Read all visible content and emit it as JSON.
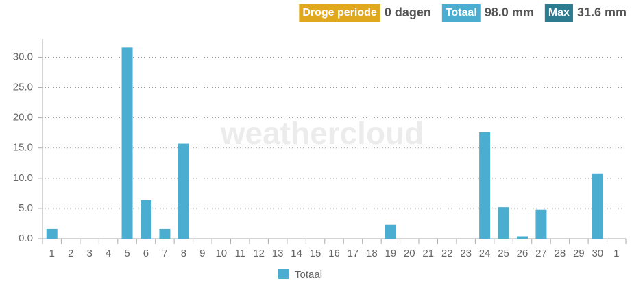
{
  "badges": [
    {
      "label": "Droge periode",
      "value": "0 dagen",
      "color": "#e0a81c"
    },
    {
      "label": "Totaal",
      "value": "98.0 mm",
      "color": "#4baed0"
    },
    {
      "label": "Max",
      "value": "31.6 mm",
      "color": "#2d7b8f"
    }
  ],
  "chart_data": {
    "type": "bar",
    "watermark": "weathercloud",
    "categories": [
      "1",
      "2",
      "3",
      "4",
      "5",
      "6",
      "7",
      "8",
      "9",
      "10",
      "11",
      "12",
      "13",
      "14",
      "15",
      "16",
      "17",
      "18",
      "19",
      "20",
      "21",
      "22",
      "23",
      "24",
      "25",
      "26",
      "27",
      "28",
      "29",
      "30",
      "1"
    ],
    "series": [
      {
        "name": "Totaal",
        "color": "#4baed0",
        "values": [
          1.6,
          0,
          0,
          0,
          31.6,
          6.4,
          1.6,
          15.7,
          0,
          0,
          0,
          0,
          0,
          0,
          0,
          0,
          0,
          0,
          2.3,
          0,
          0,
          0,
          0,
          17.6,
          5.2,
          0.4,
          4.8,
          0,
          0,
          10.8,
          0
        ]
      }
    ],
    "ylim": [
      0,
      33
    ],
    "yticks": [
      {
        "value": 0,
        "label": "0.0"
      },
      {
        "value": 5,
        "label": "5.0"
      },
      {
        "value": 10,
        "label": "10.0"
      },
      {
        "value": 15,
        "label": "15.0"
      },
      {
        "value": 20,
        "label": "20.0"
      },
      {
        "value": 25,
        "label": "25.0"
      },
      {
        "value": 30,
        "label": "30.0"
      }
    ],
    "grid": true
  }
}
